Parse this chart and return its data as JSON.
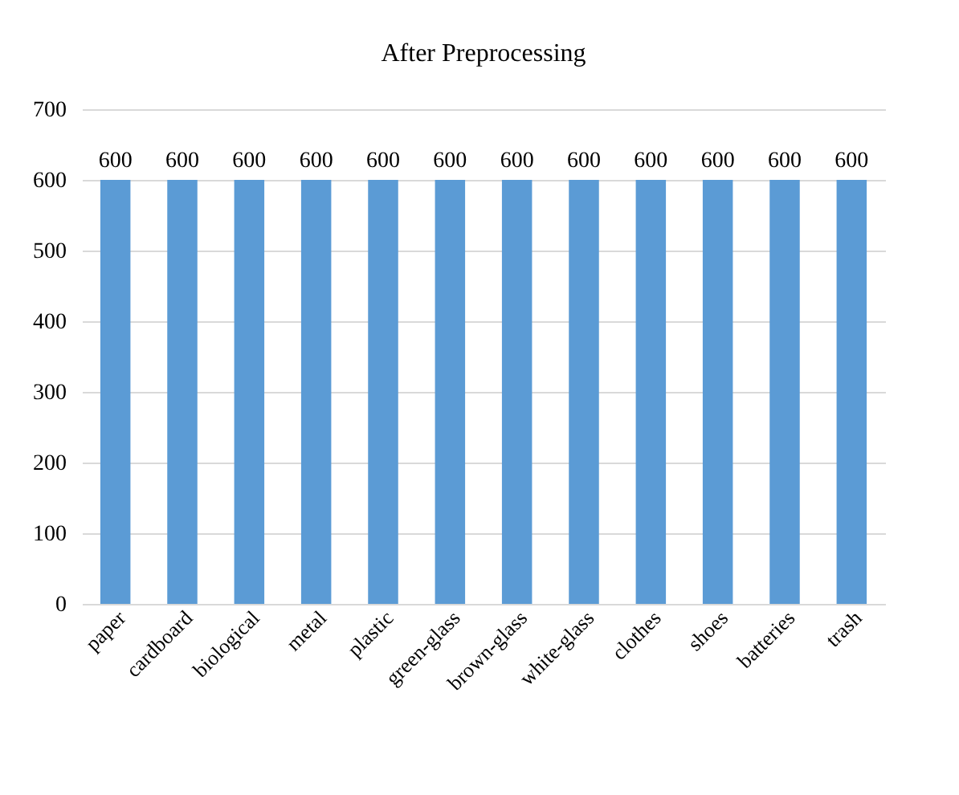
{
  "chart_data": {
    "type": "bar",
    "title": "After Preprocessing",
    "categories": [
      "paper",
      "cardboard",
      "biological",
      "metal",
      "plastic",
      "green-glass",
      "brown-glass",
      "white-glass",
      "clothes",
      "shoes",
      "batteries",
      "trash"
    ],
    "values": [
      600,
      600,
      600,
      600,
      600,
      600,
      600,
      600,
      600,
      600,
      600,
      600
    ],
    "color": "#5b9bd5",
    "ylim": [
      0,
      700
    ],
    "yticks": [
      0,
      100,
      200,
      300,
      400,
      500,
      600,
      700
    ],
    "grid": "y",
    "data_labels": true
  }
}
